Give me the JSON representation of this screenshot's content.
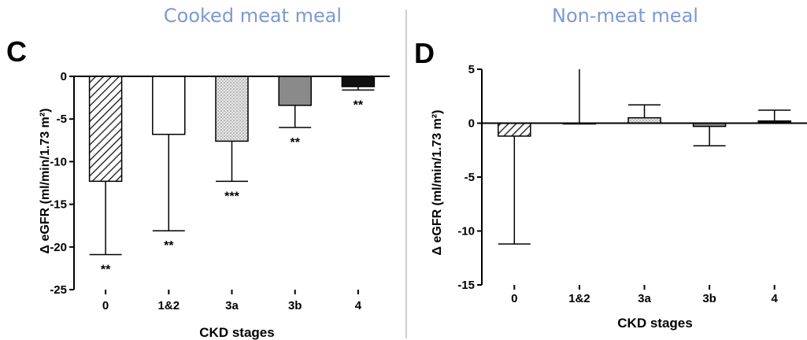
{
  "divider_color": "#cfcfcf",
  "heading_color": "#7b9bd0",
  "chart_data": [
    {
      "type": "bar",
      "panel_letter": "C",
      "title": "Cooked meat meal",
      "xlabel": "CKD stages",
      "ylabel": "Δ eGFR (ml/min/1.73 m²)",
      "categories": [
        "0",
        "1&2",
        "3a",
        "3b",
        "4"
      ],
      "values": [
        -12.3,
        -6.8,
        -7.6,
        -3.4,
        -1.2
      ],
      "error": [
        8.6,
        11.3,
        4.7,
        2.6,
        0.4
      ],
      "significance": [
        "**",
        "**",
        "***",
        "**",
        "**"
      ],
      "fills": [
        "hatch",
        "white",
        "dots",
        "gray",
        "black"
      ],
      "ylim": [
        -25,
        0
      ],
      "yticks": [
        0,
        -5,
        -10,
        -15,
        -20,
        -25
      ],
      "grid": false
    },
    {
      "type": "bar",
      "panel_letter": "D",
      "title": "Non-meat meal",
      "xlabel": "CKD stages",
      "ylabel": "Δ eGFR (ml/min/1.73 m²)",
      "categories": [
        "0",
        "1&2",
        "3a",
        "3b",
        "4"
      ],
      "values": [
        -1.2,
        0,
        0.5,
        -0.3,
        0.2
      ],
      "error": [
        10.0,
        5.0,
        1.2,
        1.8,
        1.0
      ],
      "significance": [
        "",
        "",
        "",
        "",
        ""
      ],
      "fills": [
        "hatch",
        "white",
        "dots",
        "gray",
        "black"
      ],
      "ylim": [
        -15,
        5
      ],
      "yticks": [
        5,
        0,
        -5,
        -10,
        -15
      ],
      "grid": false
    }
  ]
}
